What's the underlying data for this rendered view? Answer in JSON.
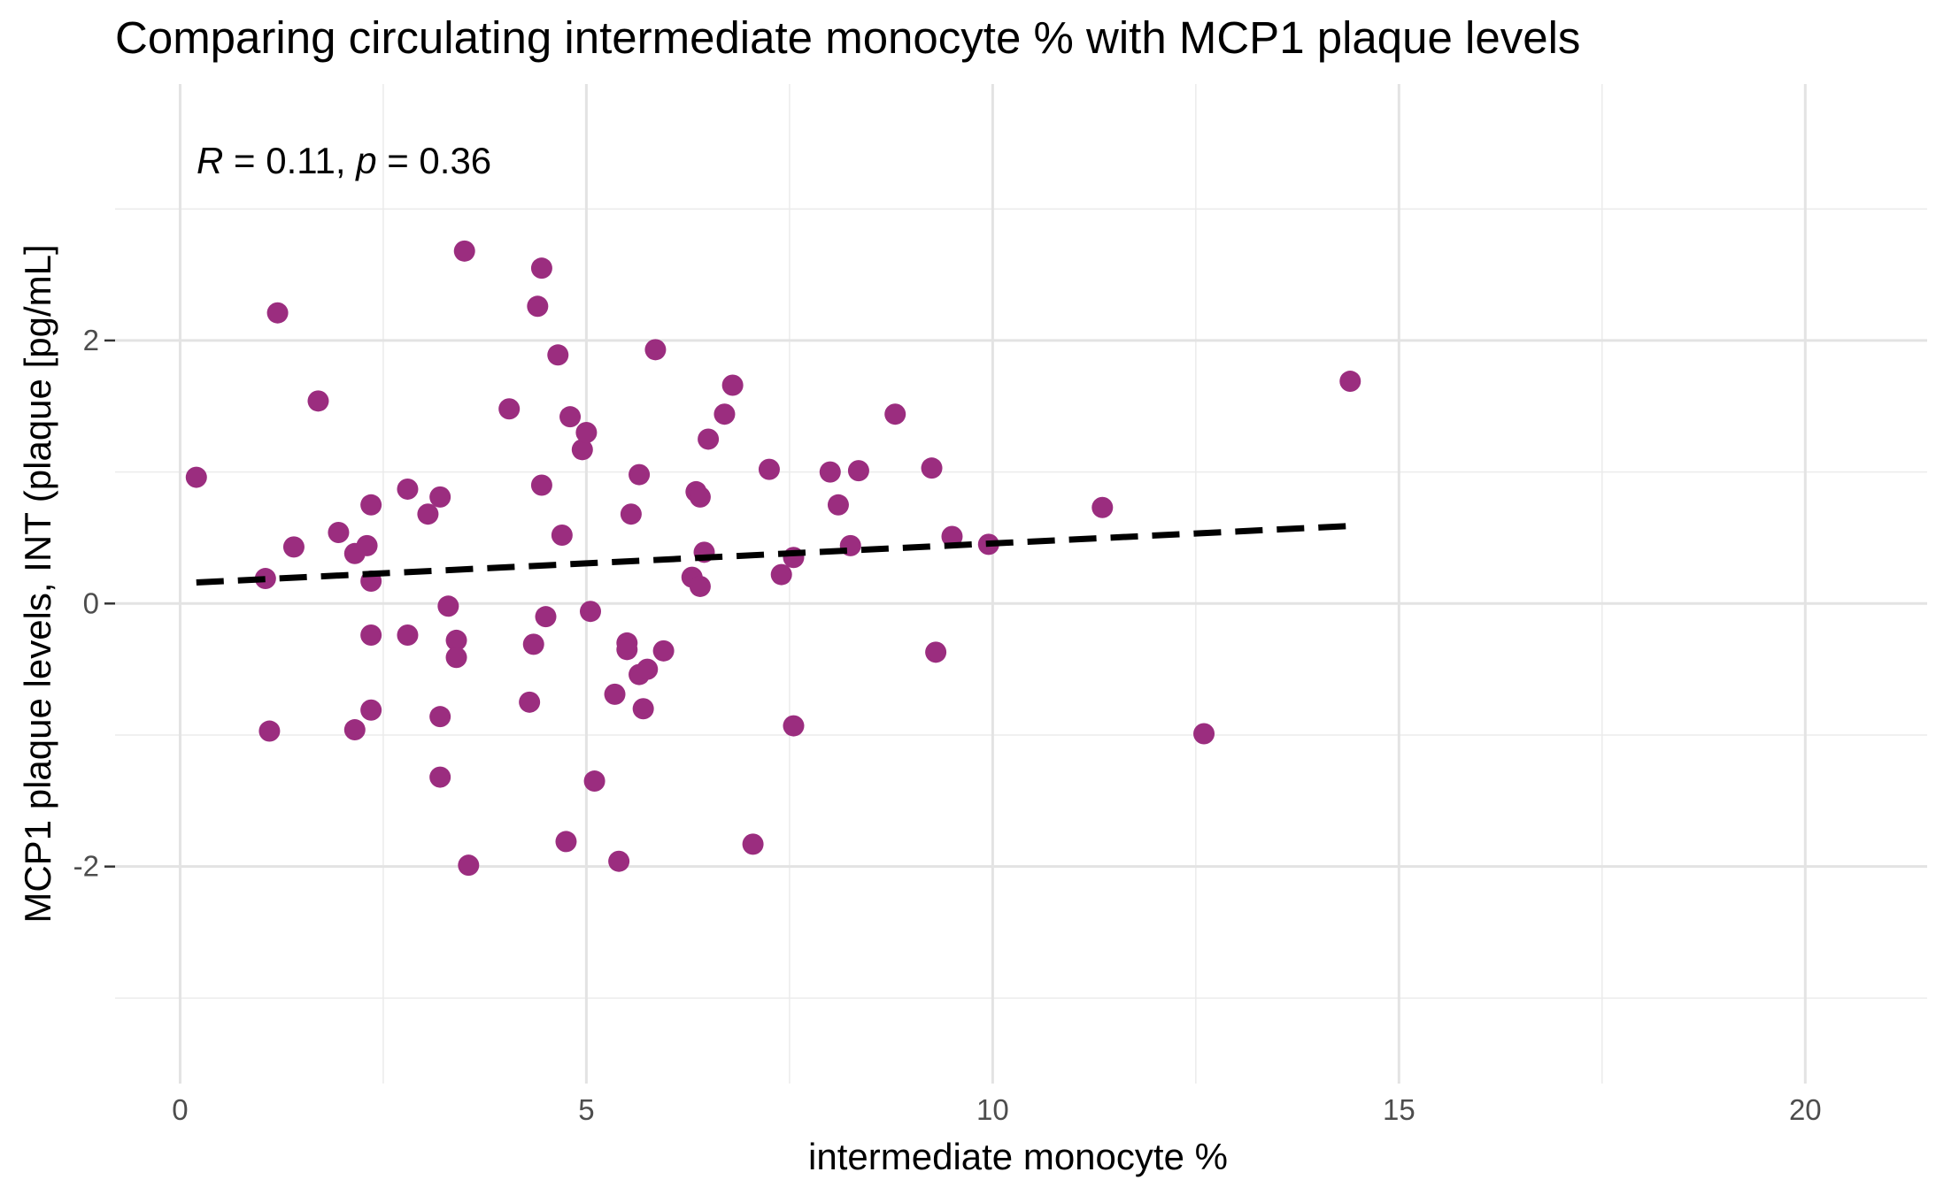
{
  "chart_data": {
    "type": "scatter",
    "title": "Comparing circulating intermediate monocyte % with MCP1 plaque levels",
    "xlabel": "intermediate monocyte %",
    "ylabel": "MCP1 plaque levels, INT (plaque [pg/mL]",
    "xlim": [
      -0.8,
      21.5
    ],
    "ylim": [
      -3.65,
      3.95
    ],
    "x_ticks": [
      0,
      5,
      10,
      15,
      20
    ],
    "x_tick_labels": [
      "0",
      "5",
      "10",
      "15",
      "20"
    ],
    "y_ticks": [
      -2,
      0,
      2
    ],
    "y_tick_labels": [
      "-2",
      "0",
      "2"
    ],
    "grid": true,
    "legend": "none",
    "point_color": "#9B2D7F",
    "annotation": {
      "r_symbol": "R",
      "r_eq": " = 0.11, ",
      "p_symbol": "p",
      "p_eq": " = 0.36"
    },
    "regression": {
      "style": "dashed",
      "color": "#000000",
      "x": [
        0.2,
        14.4
      ],
      "y": [
        0.16,
        0.59
      ]
    },
    "points": [
      {
        "x": 0.2,
        "y": 0.96
      },
      {
        "x": 1.05,
        "y": 0.19
      },
      {
        "x": 1.1,
        "y": -0.97
      },
      {
        "x": 1.2,
        "y": 2.21
      },
      {
        "x": 1.4,
        "y": 0.43
      },
      {
        "x": 1.7,
        "y": 1.54
      },
      {
        "x": 1.95,
        "y": 0.54
      },
      {
        "x": 2.15,
        "y": 0.38
      },
      {
        "x": 2.3,
        "y": 0.44
      },
      {
        "x": 2.15,
        "y": -0.96
      },
      {
        "x": 2.35,
        "y": 0.75
      },
      {
        "x": 2.35,
        "y": 0.17
      },
      {
        "x": 2.35,
        "y": -0.24
      },
      {
        "x": 2.35,
        "y": -0.81
      },
      {
        "x": 2.8,
        "y": 0.87
      },
      {
        "x": 2.8,
        "y": -0.24
      },
      {
        "x": 3.05,
        "y": 0.68
      },
      {
        "x": 3.2,
        "y": 0.81
      },
      {
        "x": 3.2,
        "y": -0.86
      },
      {
        "x": 3.2,
        "y": -1.32
      },
      {
        "x": 3.3,
        "y": -0.02
      },
      {
        "x": 3.4,
        "y": -0.28
      },
      {
        "x": 3.4,
        "y": -0.41
      },
      {
        "x": 3.5,
        "y": 2.68
      },
      {
        "x": 3.55,
        "y": -1.99
      },
      {
        "x": 4.05,
        "y": 1.48
      },
      {
        "x": 4.3,
        "y": -0.75
      },
      {
        "x": 4.35,
        "y": -0.31
      },
      {
        "x": 4.4,
        "y": 2.26
      },
      {
        "x": 4.45,
        "y": 2.55
      },
      {
        "x": 4.45,
        "y": 0.9
      },
      {
        "x": 4.5,
        "y": -0.1
      },
      {
        "x": 4.65,
        "y": 1.89
      },
      {
        "x": 4.7,
        "y": 0.52
      },
      {
        "x": 4.75,
        "y": -1.81
      },
      {
        "x": 4.8,
        "y": 1.42
      },
      {
        "x": 4.95,
        "y": 1.17
      },
      {
        "x": 5.0,
        "y": 1.3
      },
      {
        "x": 5.05,
        "y": -0.06
      },
      {
        "x": 5.1,
        "y": -1.35
      },
      {
        "x": 5.35,
        "y": -0.69
      },
      {
        "x": 5.4,
        "y": -1.96
      },
      {
        "x": 5.5,
        "y": -0.3
      },
      {
        "x": 5.5,
        "y": -0.35
      },
      {
        "x": 5.55,
        "y": 0.68
      },
      {
        "x": 5.65,
        "y": 0.98
      },
      {
        "x": 5.65,
        "y": -0.54
      },
      {
        "x": 5.7,
        "y": -0.8
      },
      {
        "x": 5.75,
        "y": -0.5
      },
      {
        "x": 5.85,
        "y": 1.93
      },
      {
        "x": 5.95,
        "y": -0.36
      },
      {
        "x": 6.3,
        "y": 0.2
      },
      {
        "x": 6.35,
        "y": 0.85
      },
      {
        "x": 6.4,
        "y": 0.81
      },
      {
        "x": 6.4,
        "y": 0.13
      },
      {
        "x": 6.45,
        "y": 0.39
      },
      {
        "x": 6.5,
        "y": 1.25
      },
      {
        "x": 6.7,
        "y": 1.44
      },
      {
        "x": 6.8,
        "y": 1.66
      },
      {
        "x": 7.05,
        "y": -1.83
      },
      {
        "x": 7.25,
        "y": 1.02
      },
      {
        "x": 7.4,
        "y": 0.22
      },
      {
        "x": 7.55,
        "y": 0.35
      },
      {
        "x": 7.55,
        "y": -0.93
      },
      {
        "x": 8.0,
        "y": 1.0
      },
      {
        "x": 8.1,
        "y": 0.75
      },
      {
        "x": 8.25,
        "y": 0.44
      },
      {
        "x": 8.35,
        "y": 1.01
      },
      {
        "x": 8.8,
        "y": 1.44
      },
      {
        "x": 9.25,
        "y": 1.03
      },
      {
        "x": 9.3,
        "y": -0.37
      },
      {
        "x": 9.5,
        "y": 0.51
      },
      {
        "x": 9.95,
        "y": 0.45
      },
      {
        "x": 11.35,
        "y": 0.73
      },
      {
        "x": 12.6,
        "y": -0.99
      },
      {
        "x": 14.4,
        "y": 1.69
      }
    ]
  }
}
